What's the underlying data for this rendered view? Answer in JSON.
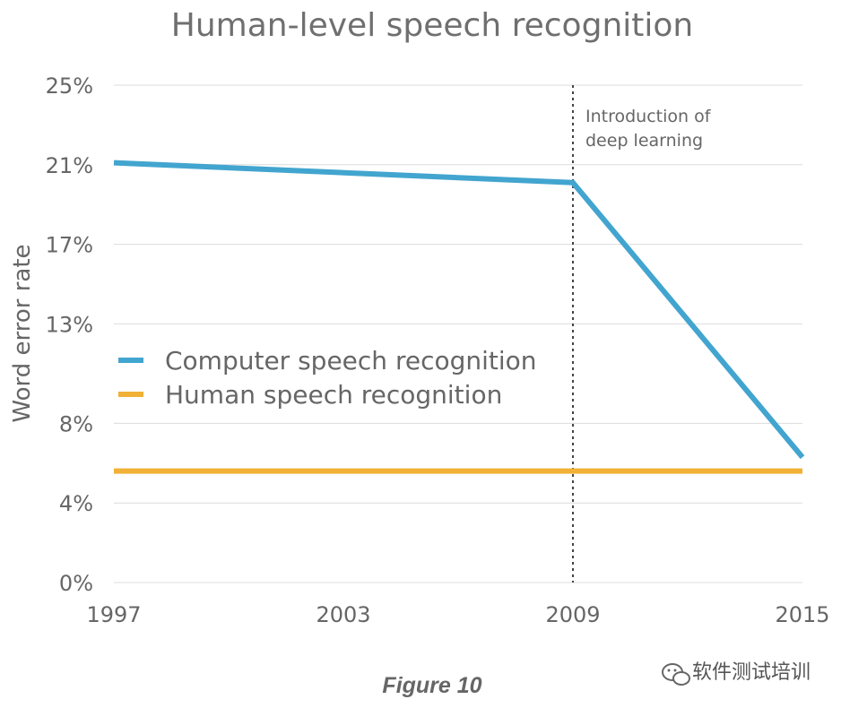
{
  "chart_data": {
    "type": "line",
    "title": "Human-level speech recognition",
    "ylabel": "Word error rate",
    "xlabel": "",
    "x_ticks": [
      "1997",
      "2003",
      "2009",
      "2015"
    ],
    "y_ticks": [
      "25%",
      "21%",
      "17%",
      "13%",
      "8%",
      "4%",
      "0%"
    ],
    "xlim": [
      1997,
      2015
    ],
    "ylim": [
      0,
      25
    ],
    "grid": true,
    "legend_position": "center-left",
    "series": [
      {
        "name": "Computer speech recognition",
        "color": "#42a5cf",
        "x": [
          1997,
          2009,
          2015
        ],
        "y": [
          21.1,
          20.1,
          6.3
        ]
      },
      {
        "name": "Human speech recognition",
        "color": "#f0b136",
        "x": [
          1997,
          2015
        ],
        "y": [
          5.6,
          5.6
        ]
      }
    ],
    "annotation": {
      "x": 2009,
      "lines": [
        "Introduction of",
        "deep learning"
      ]
    }
  },
  "caption": "Figure 10",
  "watermark": "软件测试培训"
}
